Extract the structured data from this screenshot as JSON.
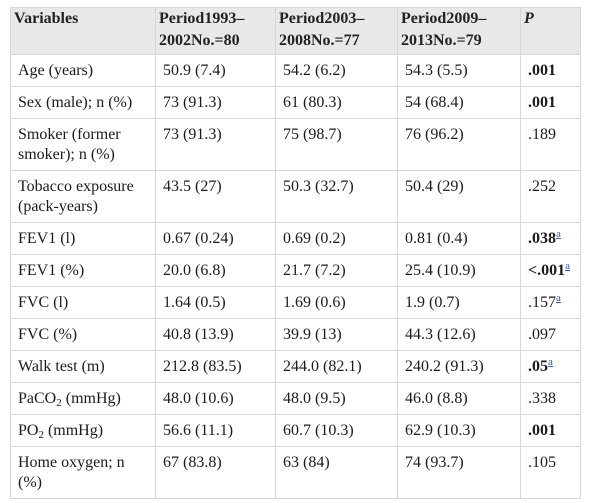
{
  "table": {
    "headers": {
      "variables": "Variables",
      "period1": {
        "line1": "Period1993–",
        "line2": "2002No.=80"
      },
      "period2": {
        "line1": "Period2003–",
        "line2": "2008No.=77"
      },
      "period3": {
        "line1": "Period2009–",
        "line2": "2013No.=79"
      },
      "p": "P"
    },
    "rows": [
      {
        "label": "Age (years)",
        "values": [
          "50.9 (7.4)",
          "54.2 (6.2)",
          "54.3 (5.5)"
        ],
        "p": {
          "value": ".001",
          "bold": true
        }
      },
      {
        "label": "Sex (male); n (%)",
        "values": [
          "73 (91.3)",
          "61 (80.3)",
          "54 (68.4)"
        ],
        "p": {
          "value": ".001",
          "bold": true
        }
      },
      {
        "label": "Smoker (former smoker); n (%)",
        "values": [
          "73 (91.3)",
          "75 (98.7)",
          "76 (96.2)"
        ],
        "p": {
          "value": ".189",
          "bold": false
        }
      },
      {
        "label": "Tobacco exposure (pack-years)",
        "values": [
          "43.5 (27)",
          "50.3 (32.7)",
          "50.4 (29)"
        ],
        "p": {
          "value": ".252",
          "bold": false
        }
      },
      {
        "label": "FEV1 (l)",
        "values": [
          "0.67 (0.24)",
          "0.69 (0.2)",
          "0.81 (0.4)"
        ],
        "p": {
          "value": ".038",
          "bold": true,
          "note": "a"
        }
      },
      {
        "label": "FEV1 (%)",
        "values": [
          "20.0 (6.8)",
          "21.7 (7.2)",
          "25.4 (10.9)"
        ],
        "p": {
          "value": "<.001",
          "bold": true,
          "note": "a"
        }
      },
      {
        "label": "FVC (l)",
        "values": [
          "1.64 (0.5)",
          "1.69 (0.6)",
          "1.9 (0.7)"
        ],
        "p": {
          "value": ".157",
          "bold": false,
          "note": "a"
        }
      },
      {
        "label": "FVC (%)",
        "values": [
          "40.8 (13.9)",
          "39.9 (13)",
          "44.3 (12.6)"
        ],
        "p": {
          "value": ".097",
          "bold": false
        }
      },
      {
        "label": "Walk test (m)",
        "values": [
          "212.8 (83.5)",
          "244.0 (82.1)",
          "240.2 (91.3)"
        ],
        "p": {
          "value": ".05",
          "bold": true,
          "note": "a"
        }
      },
      {
        "label": "PaCO",
        "label_sub": "2",
        "label_after": " (mmHg)",
        "values": [
          "48.0 (10.6)",
          "48.0 (9.5)",
          "46.0 (8.8)"
        ],
        "p": {
          "value": ".338",
          "bold": false
        }
      },
      {
        "label": "PO",
        "label_sub": "2",
        "label_after": " (mmHg)",
        "values": [
          "56.6 (11.1)",
          "60.7 (10.3)",
          "62.9 (10.3)"
        ],
        "p": {
          "value": ".001",
          "bold": true
        }
      },
      {
        "label": "Home oxygen; n (%)",
        "values": [
          "67 (83.8)",
          "63 (84)",
          "74 (93.7)"
        ],
        "p": {
          "value": ".105",
          "bold": false
        }
      }
    ]
  },
  "colors": {
    "header_bg": "#e8e8e8",
    "border": "#d6d6d6",
    "link": "#2f5fb3",
    "text": "#1b1b1b"
  }
}
